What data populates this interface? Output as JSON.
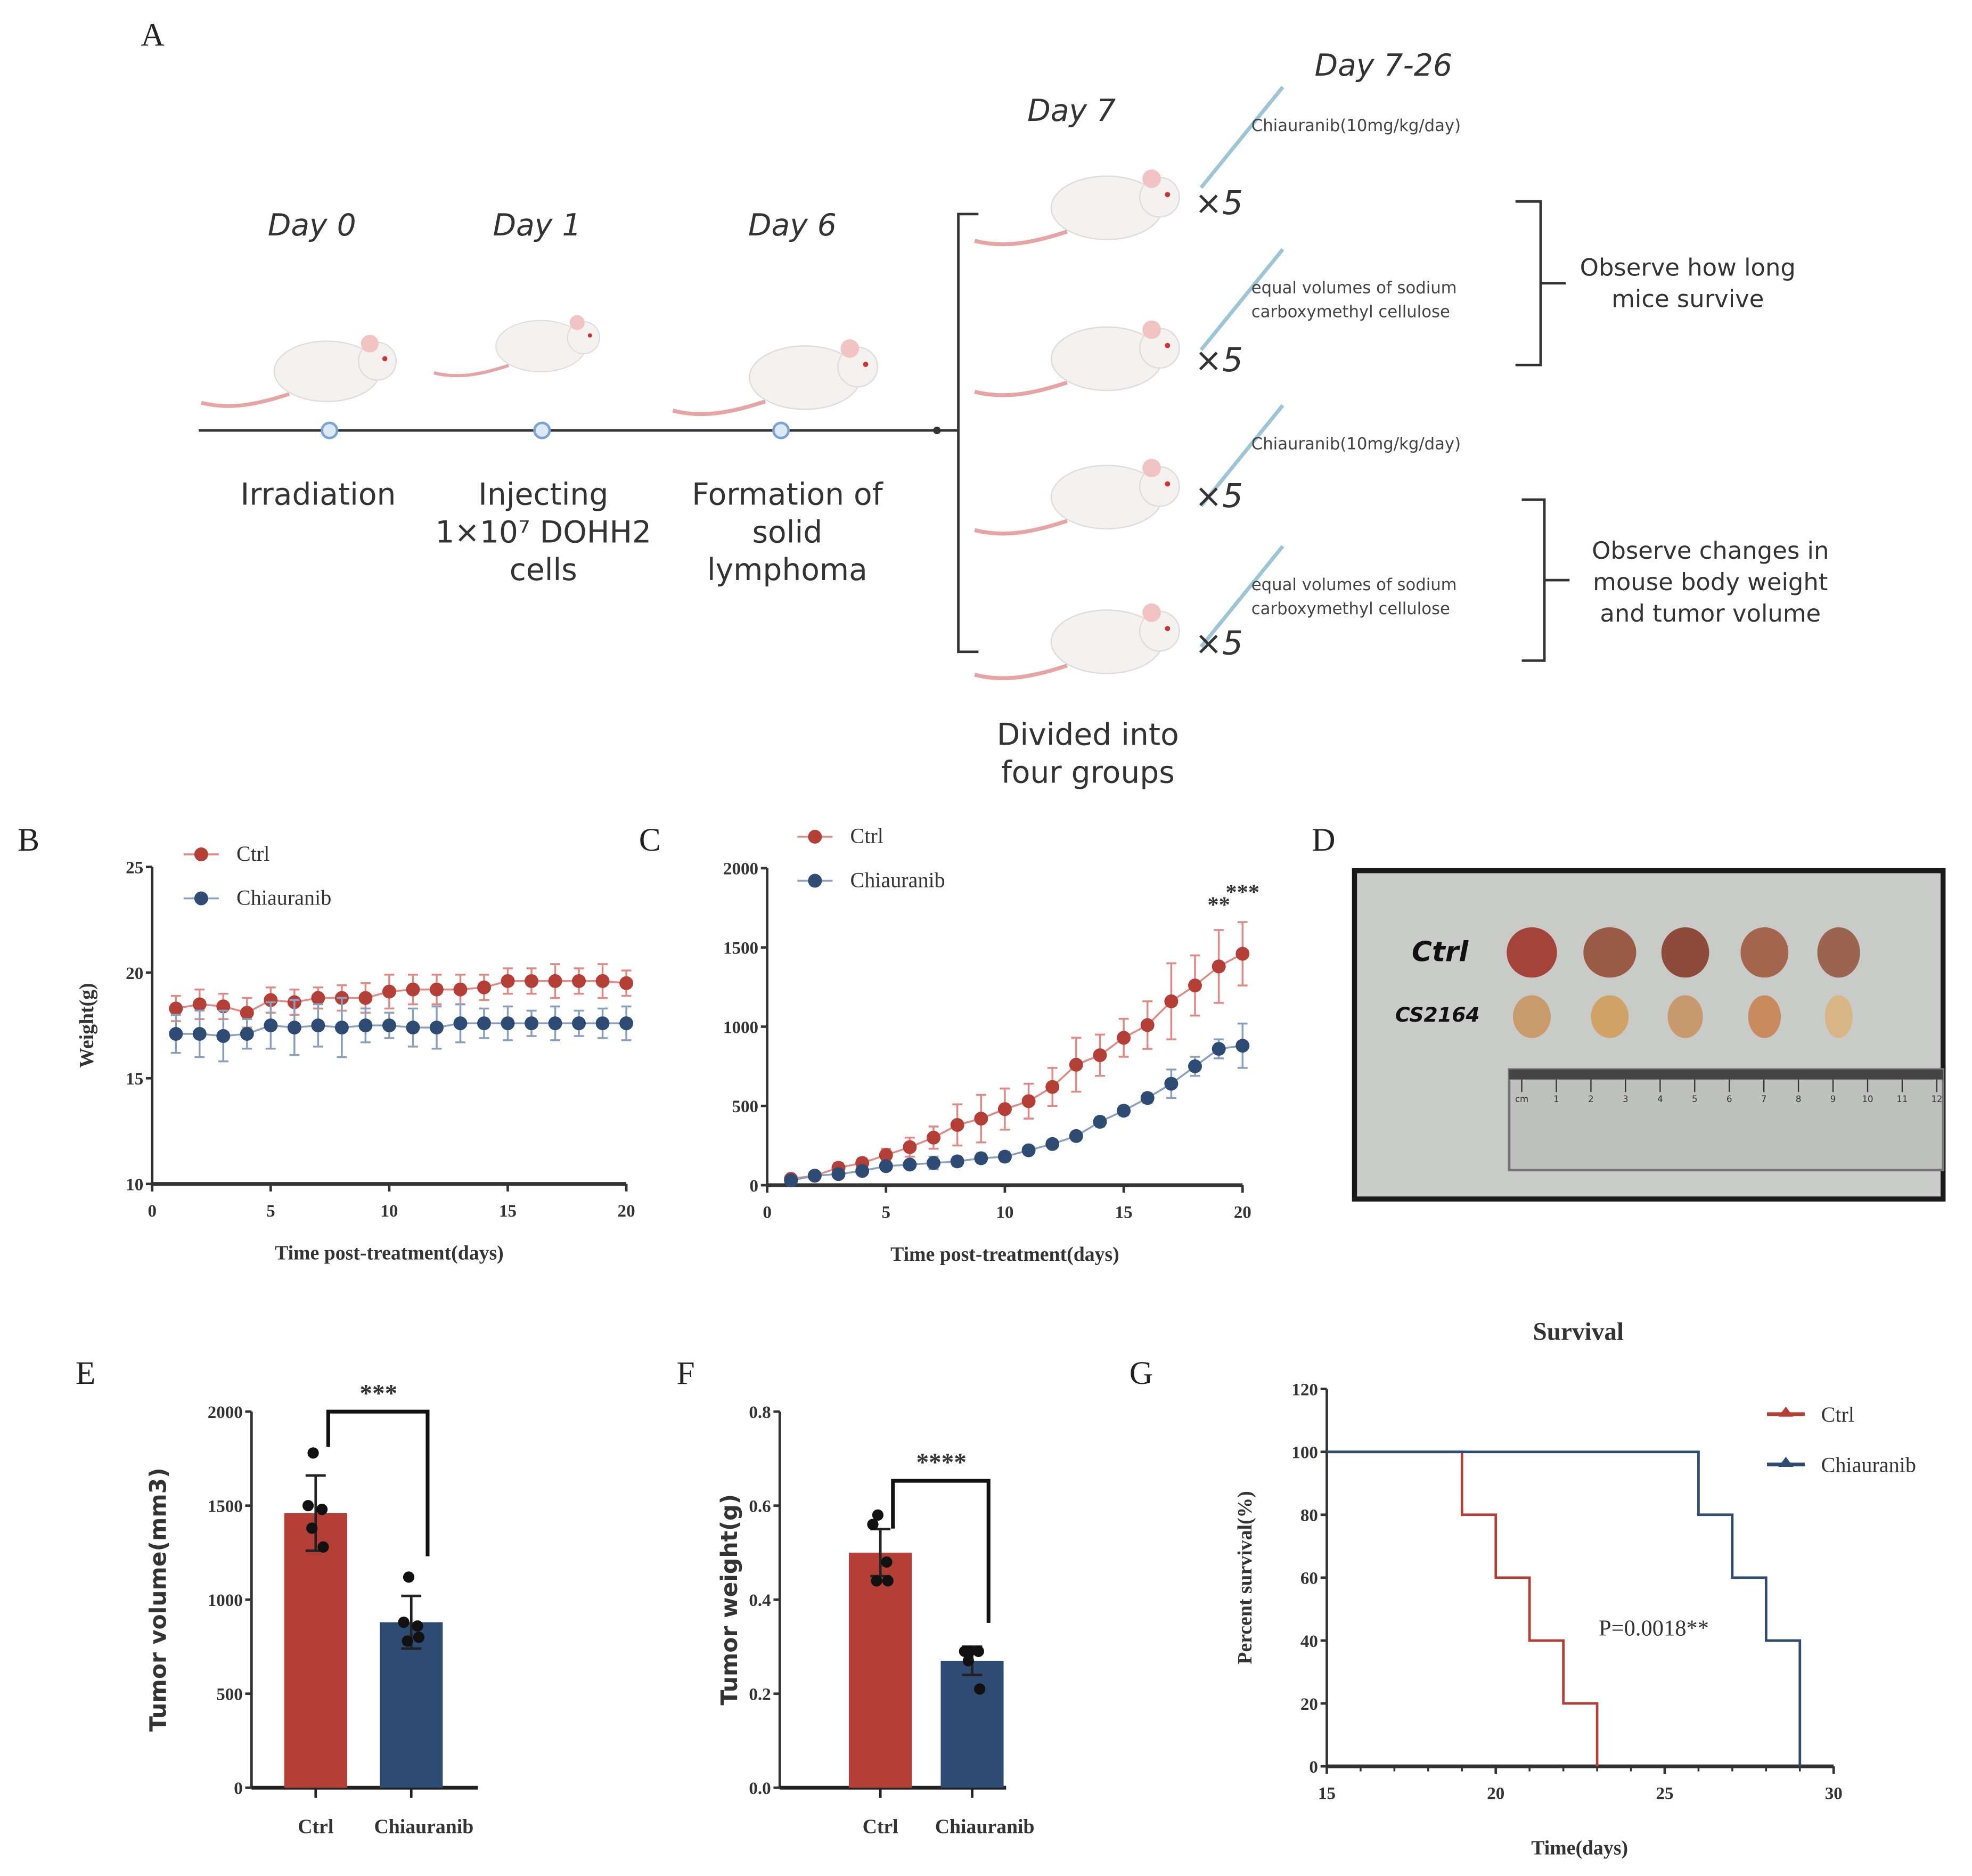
{
  "panel_labels": {
    "a": "A",
    "b": "B",
    "c": "C",
    "d": "D",
    "e": "E",
    "f": "F",
    "g": "G"
  },
  "schematic": {
    "days": {
      "d0": "Day 0",
      "d1": "Day 1",
      "d6": "Day 6",
      "d7": "Day 7",
      "d7_26": "Day 7-26"
    },
    "steps": {
      "irradiation": "Irradiation",
      "inject_1": "Injecting",
      "inject_2": "1×10⁷ DOHH2",
      "inject_3": "cells",
      "form_1": "Formation of",
      "form_2": "solid",
      "form_3": "lymphoma",
      "divide_1": "Divided into",
      "divide_2": "four groups"
    },
    "groups": [
      {
        "treatment_1": "Chiauranib(10mg/kg/day)",
        "treatment_2": "",
        "count": "×5"
      },
      {
        "treatment_1": "equal volumes of sodium",
        "treatment_2": "carboxymethyl cellulose",
        "count": "×5"
      },
      {
        "treatment_1": "Chiauranib(10mg/kg/day)",
        "treatment_2": "",
        "count": "×5"
      },
      {
        "treatment_1": "equal volumes of sodium",
        "treatment_2": "carboxymethyl cellulose",
        "count": "×5"
      }
    ],
    "observe_survival": {
      "l1": "Observe how long",
      "l2": "mice survive"
    },
    "observe_changes": {
      "l1": "Observe changes in",
      "l2": "mouse body weight",
      "l3": "and tumor volume"
    }
  },
  "photo": {
    "row1_label": "Ctrl",
    "row2_label": "CS2164",
    "ruler_labels": [
      "cm",
      "1",
      "2",
      "3",
      "4",
      "5",
      "6",
      "7",
      "8",
      "9",
      "10",
      "11",
      "12"
    ]
  },
  "colors": {
    "ctrl": "#b33f37",
    "chiauranib": "#2e4b73",
    "ctrl_err": "#e08a85",
    "chi_err": "#8aa0bf"
  },
  "chart_data": [
    {
      "id": "B",
      "type": "line",
      "xlabel": "Time post-treatment(days)",
      "ylabel": "Weight(g)",
      "xlim": [
        0,
        20
      ],
      "ylim": [
        10,
        25
      ],
      "xticks": [
        0,
        5,
        10,
        15,
        20
      ],
      "yticks": [
        10,
        15,
        20,
        25
      ],
      "legend": "top-left",
      "x": [
        1,
        2,
        3,
        4,
        5,
        6,
        7,
        8,
        9,
        10,
        11,
        12,
        13,
        14,
        15,
        16,
        17,
        18,
        19,
        20
      ],
      "series": [
        {
          "name": "Ctrl",
          "values": [
            18.3,
            18.5,
            18.4,
            18.1,
            18.7,
            18.6,
            18.8,
            18.8,
            18.8,
            19.1,
            19.2,
            19.2,
            19.2,
            19.3,
            19.6,
            19.6,
            19.6,
            19.6,
            19.6,
            19.5
          ],
          "error": [
            0.6,
            0.7,
            0.6,
            0.7,
            0.6,
            0.6,
            0.5,
            0.6,
            0.7,
            0.8,
            0.7,
            0.7,
            0.7,
            0.6,
            0.6,
            0.6,
            0.8,
            0.6,
            0.8,
            0.6
          ]
        },
        {
          "name": "Chiauranib",
          "values": [
            17.1,
            17.1,
            17.0,
            17.1,
            17.5,
            17.4,
            17.5,
            17.4,
            17.5,
            17.5,
            17.4,
            17.4,
            17.6,
            17.6,
            17.6,
            17.6,
            17.6,
            17.6,
            17.6,
            17.6
          ],
          "error": [
            0.9,
            1.1,
            1.2,
            0.7,
            1.1,
            1.3,
            1.0,
            1.4,
            0.8,
            0.6,
            0.9,
            1.0,
            0.9,
            0.7,
            0.8,
            0.6,
            0.8,
            0.6,
            0.7,
            0.8
          ]
        }
      ]
    },
    {
      "id": "C",
      "type": "line",
      "xlabel": "Time post-treatment(days)",
      "ylabel": "",
      "xlim": [
        0,
        20
      ],
      "ylim": [
        0,
        2000
      ],
      "xticks": [
        0,
        5,
        10,
        15,
        20
      ],
      "yticks": [
        0,
        500,
        1000,
        1500,
        2000
      ],
      "legend": "top-left",
      "x": [
        1,
        2,
        3,
        4,
        5,
        6,
        7,
        8,
        9,
        10,
        11,
        12,
        13,
        14,
        15,
        16,
        17,
        18,
        19,
        20
      ],
      "series": [
        {
          "name": "Ctrl",
          "values": [
            40,
            60,
            110,
            140,
            190,
            240,
            300,
            380,
            420,
            480,
            530,
            620,
            760,
            820,
            930,
            1010,
            1160,
            1260,
            1380,
            1460
          ],
          "error": [
            20,
            20,
            30,
            30,
            40,
            60,
            70,
            130,
            150,
            130,
            110,
            120,
            170,
            130,
            120,
            150,
            240,
            190,
            230,
            200
          ]
        },
        {
          "name": "Chiauranib",
          "values": [
            30,
            60,
            70,
            90,
            120,
            130,
            140,
            150,
            170,
            180,
            220,
            260,
            310,
            400,
            470,
            550,
            640,
            750,
            860,
            880
          ],
          "error": [
            10,
            10,
            20,
            20,
            20,
            20,
            40,
            30,
            30,
            30,
            20,
            20,
            20,
            30,
            30,
            30,
            90,
            60,
            60,
            140
          ]
        }
      ],
      "annotations": [
        {
          "x": 19,
          "text": "**"
        },
        {
          "x": 20,
          "text": "***"
        }
      ]
    },
    {
      "id": "E",
      "type": "bar",
      "ylabel": "Tumor volume(mm3)",
      "ylim": [
        0,
        2000
      ],
      "yticks": [
        0,
        500,
        1000,
        1500,
        2000
      ],
      "categories": [
        "Ctrl",
        "Chiauranib"
      ],
      "values": [
        1460,
        880
      ],
      "error": [
        200,
        140
      ],
      "points": [
        [
          1780,
          1500,
          1480,
          1380,
          1280
        ],
        [
          1120,
          880,
          860,
          780,
          800
        ]
      ],
      "significance": "***"
    },
    {
      "id": "F",
      "type": "bar",
      "ylabel": "Tumor weight(g)",
      "ylim": [
        0,
        0.8
      ],
      "yticks": [
        "0.0",
        "0.2",
        "0.4",
        "0.6",
        "0.8"
      ],
      "categories": [
        "Ctrl",
        "Chiauranib"
      ],
      "values": [
        0.5,
        0.27
      ],
      "error": [
        0.05,
        0.03
      ],
      "points": [
        [
          0.58,
          0.56,
          0.48,
          0.44,
          0.44
        ],
        [
          0.29,
          0.29,
          0.29,
          0.27,
          0.21
        ]
      ],
      "significance": "****"
    },
    {
      "id": "G",
      "type": "line",
      "title": "Survival",
      "xlabel": "Time(days)",
      "ylabel": "Percent survival(%)",
      "xlim": [
        15,
        30
      ],
      "ylim": [
        0,
        120
      ],
      "xticks": [
        15,
        20,
        25,
        30
      ],
      "yticks": [
        0,
        20,
        40,
        60,
        80,
        100,
        120
      ],
      "legend": "top-right",
      "series": [
        {
          "name": "Ctrl",
          "steps": [
            [
              15,
              100
            ],
            [
              19,
              80
            ],
            [
              20,
              60
            ],
            [
              21,
              40
            ],
            [
              22,
              20
            ],
            [
              23,
              0
            ]
          ]
        },
        {
          "name": "Chiauranib",
          "steps": [
            [
              15,
              100
            ],
            [
              26,
              80
            ],
            [
              27,
              60
            ],
            [
              28,
              40
            ],
            [
              29,
              0
            ]
          ]
        }
      ],
      "annotation": "P=0.0018**"
    }
  ]
}
